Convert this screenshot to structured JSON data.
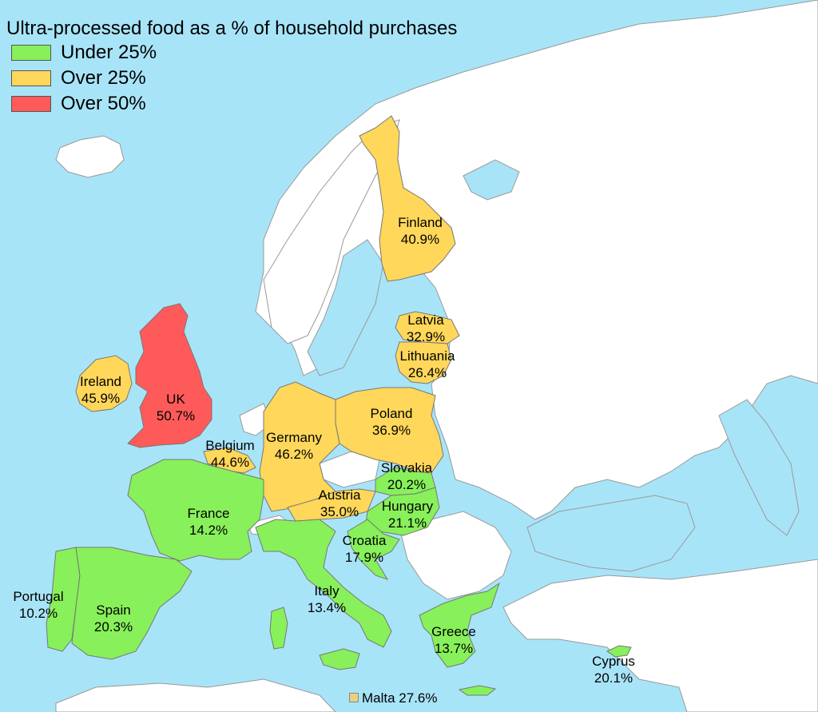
{
  "legend": {
    "title": "Ultra-processed food as a % of household purchases",
    "items": [
      {
        "label": "Under 25%",
        "color": "#88f05a"
      },
      {
        "label": "Over 25%",
        "color": "#ffd75a"
      },
      {
        "label": "Over 50%",
        "color": "#ff5a5a"
      }
    ]
  },
  "countries": {
    "finland": {
      "name": "Finland",
      "value": "40.9%",
      "category": "Over 25%"
    },
    "latvia": {
      "name": "Latvia",
      "value": "32.9%",
      "category": "Over 25%"
    },
    "lithuania": {
      "name": "Lithuania",
      "value": "26.4%",
      "category": "Over 25%"
    },
    "ireland": {
      "name": "Ireland",
      "value": "45.9%",
      "category": "Over 25%"
    },
    "uk": {
      "name": "UK",
      "value": "50.7%",
      "category": "Over 50%"
    },
    "poland": {
      "name": "Poland",
      "value": "36.9%",
      "category": "Over 25%"
    },
    "germany": {
      "name": "Germany",
      "value": "46.2%",
      "category": "Over 25%"
    },
    "belgium": {
      "name": "Belgium",
      "value": "44.6%",
      "category": "Over 25%"
    },
    "slovakia": {
      "name": "Slovakia",
      "value": "20.2%",
      "category": "Under 25%"
    },
    "austria": {
      "name": "Austria",
      "value": "35.0%",
      "category": "Over 25%"
    },
    "hungary": {
      "name": "Hungary",
      "value": "21.1%",
      "category": "Under 25%"
    },
    "france": {
      "name": "France",
      "value": "14.2%",
      "category": "Under 25%"
    },
    "croatia": {
      "name": "Croatia",
      "value": "17.9%",
      "category": "Under 25%"
    },
    "portugal": {
      "name": "Portugal",
      "value": "10.2%",
      "category": "Under 25%"
    },
    "spain": {
      "name": "Spain",
      "value": "20.3%",
      "category": "Under 25%"
    },
    "italy": {
      "name": "Italy",
      "value": "13.4%",
      "category": "Under 25%"
    },
    "greece": {
      "name": "Greece",
      "value": "13.7%",
      "category": "Under 25%"
    },
    "cyprus": {
      "name": "Cyprus",
      "value": "20.1%",
      "category": "Under 25%"
    },
    "malta": {
      "label": "Malta 27.6%",
      "category": "Over 25%",
      "color": "#e7d27f"
    }
  },
  "colors": {
    "sea": "#a8e4f8",
    "land_other": "#ffffff",
    "border": "#999999"
  }
}
